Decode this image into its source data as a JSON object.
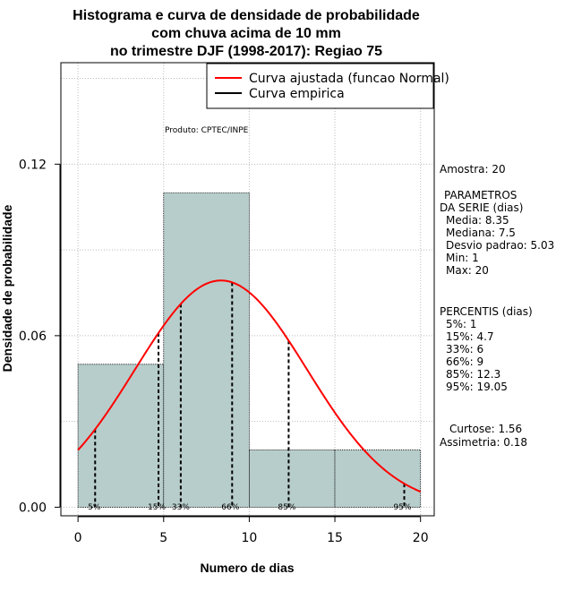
{
  "chart_data": {
    "type": "bar",
    "title_lines": [
      "Histograma e curva de densidade de probabilidade",
      "com chuva acima de 10 mm",
      "no trimestre DJF (1998-2017): Regiao 75"
    ],
    "xlabel": "Numero de dias",
    "ylabel": "Densidade de probabilidade",
    "xlim": [
      -1,
      20.8
    ],
    "ylim": [
      -0.003,
      0.1555
    ],
    "x_ticks": [
      0,
      5,
      10,
      15,
      20
    ],
    "x_tick_labels": [
      "0",
      "5",
      "10",
      "15",
      "20"
    ],
    "y_ticks": [
      0.0,
      0.06,
      0.12
    ],
    "y_tick_labels": [
      "0.00",
      "0.06",
      "0.12"
    ],
    "grid": true,
    "bins": [
      {
        "start": 0,
        "end": 5,
        "density": 0.05
      },
      {
        "start": 5,
        "end": 10,
        "density": 0.11
      },
      {
        "start": 10,
        "end": 15,
        "density": 0.02
      },
      {
        "start": 15,
        "end": 20,
        "density": 0.02
      }
    ],
    "normal_fit": {
      "mean": 8.35,
      "sd": 5.03,
      "x_range": [
        0,
        20
      ]
    },
    "percentiles": [
      {
        "label": "5%",
        "value": 1
      },
      {
        "label": "15%",
        "value": 4.7
      },
      {
        "label": "33%",
        "value": 6
      },
      {
        "label": "66%",
        "value": 9
      },
      {
        "label": "85%",
        "value": 12.3
      },
      {
        "label": "95%",
        "value": 19.05
      }
    ],
    "legend": {
      "position": "top-right",
      "entries": [
        {
          "label": "Curva ajustada (funcao Normal)",
          "color": "#ff0000"
        },
        {
          "label": "Curva empirica",
          "color": "#000000"
        }
      ]
    },
    "annotation": "Produto: CPTEC/INPE"
  },
  "side_panel": {
    "sample": "Amostra: 20",
    "params_header_1": "PARAMETROS",
    "params_header_2": "DA SERIE (dias)",
    "media": "Media: 8.35",
    "mediana": "Mediana: 7.5",
    "desvio": "Desvio padrao: 5.03",
    "min": "Min: 1",
    "max": "Max: 20",
    "percentis_header": "PERCENTIS (dias)",
    "p5": "5%: 1",
    "p15": "15%: 4.7",
    "p33": "33%: 6",
    "p66": "66%: 9",
    "p85": "85%: 12.3",
    "p95": "95%: 19.05",
    "curtose": "Curtose: 1.56",
    "assimetria": "Assimetria: 0.18"
  },
  "colors": {
    "bar_fill": "#b7cdcb",
    "fit_curve": "#ff0000",
    "grid": "#bbbbbb"
  }
}
